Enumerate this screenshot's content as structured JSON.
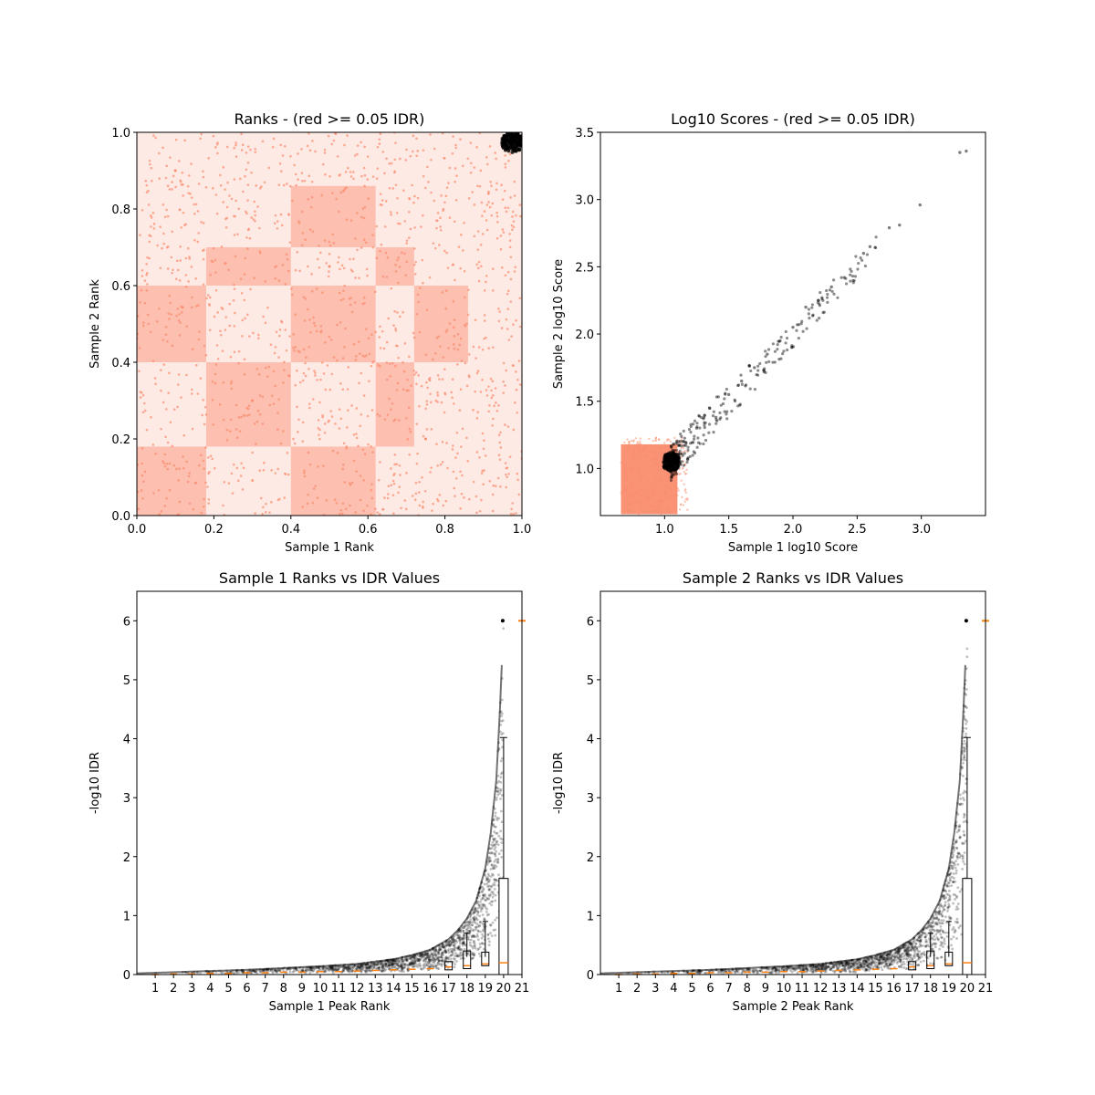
{
  "chart_data": [
    {
      "type": "scatter",
      "title": "Ranks - (red >= 0.05 IDR)",
      "xlabel": "Sample 1 Rank",
      "ylabel": "Sample 2 Rank",
      "xlim": [
        0,
        1
      ],
      "ylim": [
        0,
        1
      ],
      "xticks": [
        "0.0",
        "0.2",
        "0.4",
        "0.6",
        "0.8",
        "1.0"
      ],
      "yticks": [
        "0.0",
        "0.2",
        "0.4",
        "0.6",
        "0.8",
        "1.0"
      ],
      "series_colors": {
        "low_idr": "#000000",
        "high_idr": "#fa8c6e"
      },
      "sample_points": [
        {
          "x": 0.98,
          "y": 0.985,
          "group": "low_idr"
        },
        {
          "x": 0.97,
          "y": 0.975,
          "group": "low_idr"
        },
        {
          "x": 0.99,
          "y": 0.97,
          "group": "low_idr"
        },
        {
          "x": 0.3,
          "y": 0.3,
          "group": "high_idr"
        },
        {
          "x": 0.5,
          "y": 0.65,
          "group": "high_idr"
        },
        {
          "x": 0.75,
          "y": 0.2,
          "group": "high_idr"
        },
        {
          "x": 0.1,
          "y": 0.9,
          "group": "high_idr"
        }
      ],
      "dense_blocks": [
        {
          "x": [
            0.18,
            0.4
          ],
          "y": [
            0.18,
            0.4
          ]
        },
        {
          "x": [
            0.18,
            0.4
          ],
          "y": [
            0.6,
            0.7
          ]
        },
        {
          "x": [
            0.62,
            0.72
          ],
          "y": [
            0.18,
            0.4
          ]
        },
        {
          "x": [
            0.62,
            0.72
          ],
          "y": [
            0.6,
            0.7
          ]
        },
        {
          "x": [
            0.4,
            0.62
          ],
          "y": [
            0.4,
            0.6
          ]
        },
        {
          "x": [
            0.4,
            0.62
          ],
          "y": [
            0.7,
            0.86
          ]
        },
        {
          "x": [
            0.72,
            0.86
          ],
          "y": [
            0.4,
            0.6
          ]
        },
        {
          "x": [
            0.0,
            0.18
          ],
          "y": [
            0.4,
            0.6
          ]
        },
        {
          "x": [
            0.4,
            0.62
          ],
          "y": [
            0.0,
            0.18
          ]
        },
        {
          "x": [
            0.0,
            0.18
          ],
          "y": [
            0.0,
            0.18
          ]
        }
      ]
    },
    {
      "type": "scatter",
      "title": "Log10 Scores - (red >= 0.05 IDR)",
      "xlabel": "Sample 1 log10 Score",
      "ylabel": "Sample 2 log10 Score",
      "xlim": [
        0.5,
        3.5
      ],
      "ylim": [
        0.65,
        3.5
      ],
      "xticks": [
        "1.0",
        "1.5",
        "2.0",
        "2.5",
        "3.0"
      ],
      "yticks": [
        "1.0",
        "1.5",
        "2.0",
        "2.5",
        "3.0",
        "3.5"
      ],
      "series_colors": {
        "low_idr": "#000000",
        "high_idr": "#fa8c6e"
      },
      "high_idr_region": {
        "x": [
          0.66,
          1.1
        ],
        "y": [
          0.66,
          1.18
        ]
      },
      "low_idr_points": [
        {
          "x": 1.02,
          "y": 1.05
        },
        {
          "x": 1.05,
          "y": 1.02
        },
        {
          "x": 1.08,
          "y": 1.1
        },
        {
          "x": 1.15,
          "y": 1.2
        },
        {
          "x": 1.25,
          "y": 1.3
        },
        {
          "x": 1.35,
          "y": 1.45
        },
        {
          "x": 1.4,
          "y": 1.38
        },
        {
          "x": 1.5,
          "y": 1.55
        },
        {
          "x": 1.6,
          "y": 1.65
        },
        {
          "x": 1.7,
          "y": 1.75
        },
        {
          "x": 1.8,
          "y": 1.85
        },
        {
          "x": 1.9,
          "y": 1.95
        },
        {
          "x": 2.0,
          "y": 2.05
        },
        {
          "x": 2.1,
          "y": 2.2
        },
        {
          "x": 2.2,
          "y": 2.25
        },
        {
          "x": 2.3,
          "y": 2.35
        },
        {
          "x": 2.4,
          "y": 2.42
        },
        {
          "x": 2.55,
          "y": 2.6
        },
        {
          "x": 2.6,
          "y": 2.65
        },
        {
          "x": 2.75,
          "y": 2.79
        },
        {
          "x": 2.83,
          "y": 2.81
        },
        {
          "x": 2.99,
          "y": 2.96
        },
        {
          "x": 3.3,
          "y": 3.35
        },
        {
          "x": 3.35,
          "y": 3.36
        }
      ]
    },
    {
      "type": "scatter",
      "title": "Sample 1 Ranks vs IDR Values",
      "xlabel": "Sample 1 Peak Rank",
      "ylabel": "-log10 IDR",
      "xlim": [
        0,
        21
      ],
      "ylim": [
        0,
        6.5
      ],
      "xticks": [
        "1",
        "2",
        "3",
        "4",
        "5",
        "6",
        "7",
        "8",
        "9",
        "10",
        "11",
        "12",
        "13",
        "14",
        "15",
        "16",
        "17",
        "18",
        "19",
        "20",
        "21"
      ],
      "yticks": [
        "0",
        "1",
        "2",
        "3",
        "4",
        "5",
        "6"
      ],
      "curve": {
        "x": [
          0,
          2,
          4,
          6,
          8,
          10,
          12,
          14,
          15,
          16,
          17,
          17.5,
          18,
          18.5,
          19,
          19.3,
          19.6,
          19.8,
          20.0
        ],
        "y": [
          0.02,
          0.04,
          0.06,
          0.08,
          0.11,
          0.14,
          0.18,
          0.26,
          0.33,
          0.42,
          0.6,
          0.75,
          0.95,
          1.25,
          1.8,
          2.4,
          3.3,
          4.5,
          6.0
        ]
      },
      "boxplot_medians": [
        0.0,
        0.01,
        0.01,
        0.02,
        0.02,
        0.03,
        0.03,
        0.04,
        0.04,
        0.05,
        0.05,
        0.06,
        0.07,
        0.08,
        0.09,
        0.1,
        0.13,
        0.15,
        0.18,
        0.2,
        6.0
      ],
      "boxplot_whisker_top_rank20": 4.02,
      "boxplot_q3_rank20": 1.63
    },
    {
      "type": "scatter",
      "title": "Sample 2 Ranks vs IDR Values",
      "xlabel": "Sample 2 Peak Rank",
      "ylabel": "-log10 IDR",
      "xlim": [
        0,
        21
      ],
      "ylim": [
        0,
        6.5
      ],
      "xticks": [
        "1",
        "2",
        "3",
        "4",
        "5",
        "6",
        "7",
        "8",
        "9",
        "10",
        "11",
        "12",
        "13",
        "14",
        "15",
        "16",
        "17",
        "18",
        "19",
        "20",
        "21"
      ],
      "yticks": [
        "0",
        "1",
        "2",
        "3",
        "4",
        "5",
        "6"
      ],
      "curve": {
        "x": [
          0,
          2,
          4,
          6,
          8,
          10,
          12,
          14,
          15,
          16,
          17,
          17.5,
          18,
          18.5,
          19,
          19.3,
          19.6,
          19.8,
          20.0
        ],
        "y": [
          0.02,
          0.04,
          0.06,
          0.08,
          0.11,
          0.14,
          0.18,
          0.26,
          0.33,
          0.42,
          0.6,
          0.75,
          0.95,
          1.25,
          1.8,
          2.4,
          3.3,
          4.5,
          6.0
        ]
      },
      "boxplot_medians": [
        0.0,
        0.01,
        0.01,
        0.02,
        0.02,
        0.03,
        0.03,
        0.04,
        0.04,
        0.05,
        0.05,
        0.06,
        0.07,
        0.08,
        0.09,
        0.1,
        0.13,
        0.15,
        0.18,
        0.2,
        6.0
      ],
      "boxplot_whisker_top_rank20": 4.02,
      "boxplot_q3_rank20": 1.63
    }
  ]
}
